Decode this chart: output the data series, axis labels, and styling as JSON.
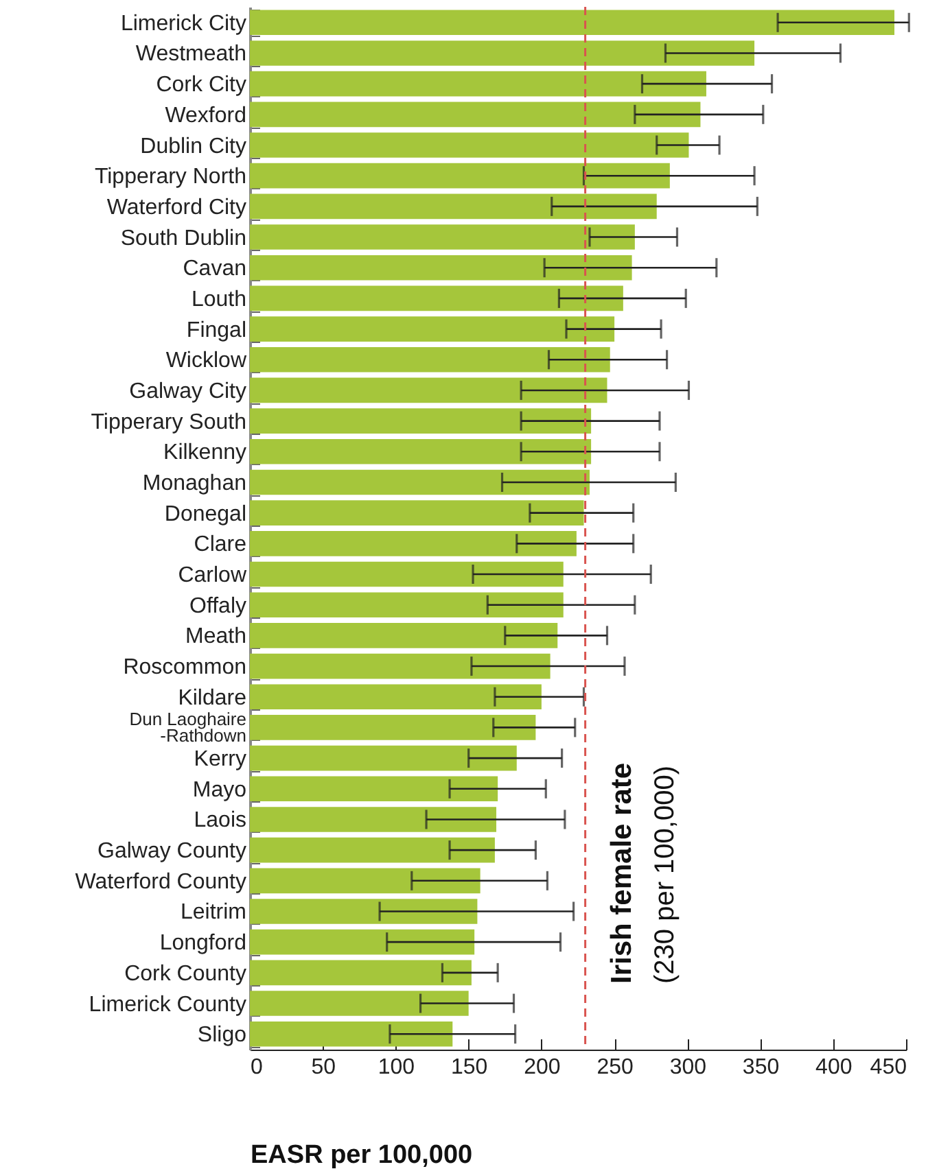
{
  "chart_data": {
    "type": "bar",
    "orientation": "horizontal",
    "xlabel": "EASR per 100,000",
    "color": "#a5c63b",
    "categories": [
      "Limerick City",
      "Westmeath",
      "Cork City",
      "Wexford",
      "Dublin City",
      "Tipperary North",
      "Waterford City",
      "South Dublin",
      "Cavan",
      "Louth",
      "Fingal",
      "Wicklow",
      "Galway City",
      "Tipperary South",
      "Kilkenny",
      "Monaghan",
      "Donegal",
      "Clare",
      "Carlow",
      "Offaly",
      "Meath",
      "Roscommon",
      "Kildare",
      "Dun Laoghaire\n-Rathdown",
      "Kerry",
      "Mayo",
      "Laois",
      "Galway County",
      "Waterford County",
      "Leitrim",
      "Longford",
      "Cork County",
      "Limerick County",
      "Sligo"
    ],
    "values": [
      442,
      346,
      313,
      309,
      301,
      288,
      279,
      264,
      262,
      256,
      250,
      247,
      245,
      234,
      234,
      233,
      229,
      224,
      215,
      215,
      211,
      206,
      200,
      196,
      183,
      170,
      169,
      168,
      158,
      156,
      154,
      152,
      150,
      139
    ],
    "errors": [
      [
        362,
        452
      ],
      [
        285,
        405
      ],
      [
        269,
        358
      ],
      [
        264,
        352
      ],
      [
        279,
        322
      ],
      [
        229,
        346
      ],
      [
        207,
        348
      ],
      [
        233,
        293
      ],
      [
        202,
        320
      ],
      [
        212,
        299
      ],
      [
        217,
        282
      ],
      [
        205,
        286
      ],
      [
        186,
        301
      ],
      [
        186,
        281
      ],
      [
        186,
        281
      ],
      [
        173,
        292
      ],
      [
        192,
        263
      ],
      [
        183,
        263
      ],
      [
        153,
        275
      ],
      [
        163,
        264
      ],
      [
        175,
        245
      ],
      [
        152,
        257
      ],
      [
        168,
        229
      ],
      [
        167,
        223
      ],
      [
        150,
        214
      ],
      [
        137,
        203
      ],
      [
        121,
        216
      ],
      [
        137,
        196
      ],
      [
        111,
        204
      ],
      [
        89,
        222
      ],
      [
        94,
        213
      ],
      [
        132,
        170
      ],
      [
        117,
        181
      ],
      [
        96,
        182
      ]
    ],
    "xlim": [
      0,
      450
    ],
    "xticks": [
      0,
      50,
      100,
      150,
      200,
      250,
      300,
      350,
      400,
      450
    ],
    "grid": false,
    "ref_lines": [
      {
        "axis": "x",
        "value": 230,
        "label": "Irish female rate\n(230 per 100,000)",
        "color": "#d9534f",
        "line_style": "dashed"
      }
    ]
  }
}
